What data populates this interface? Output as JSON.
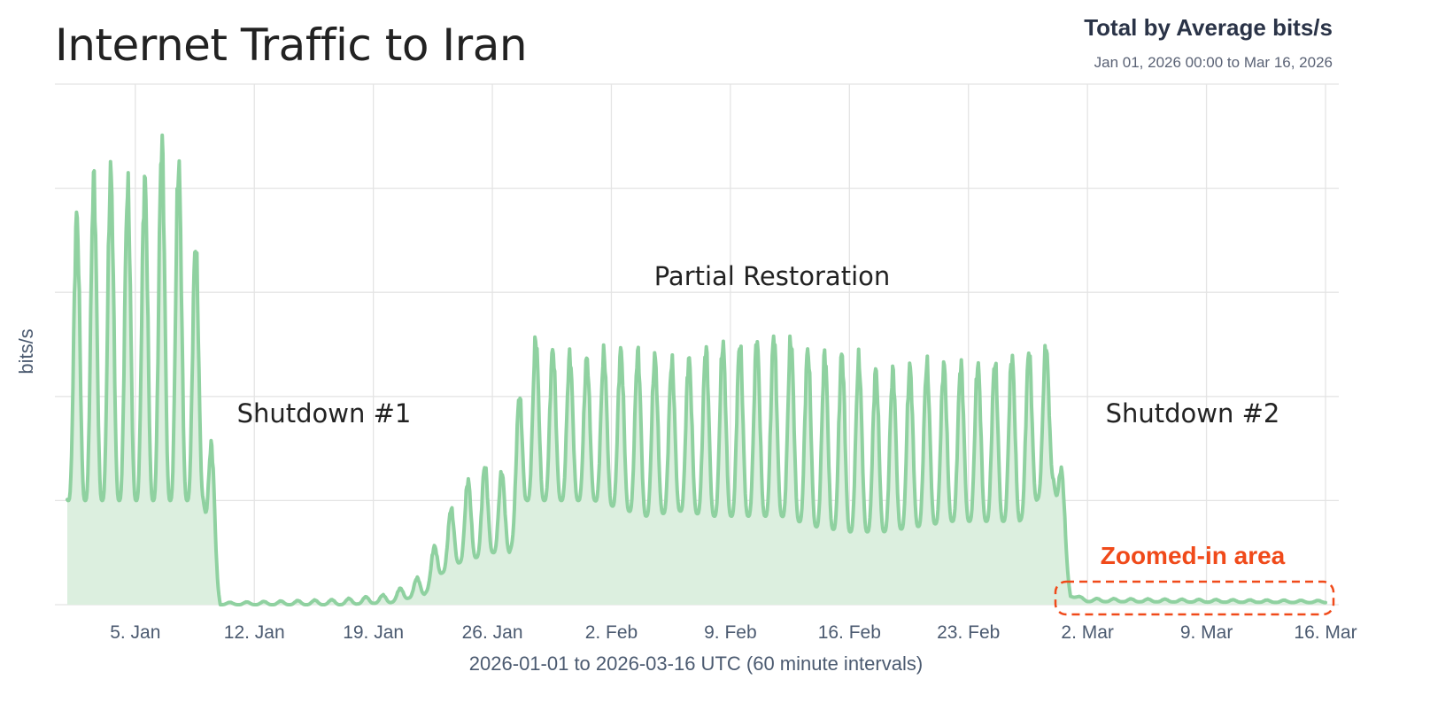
{
  "header": {
    "title": "Internet Traffic to Iran",
    "metric": "Total by Average bits/s",
    "date_range": "Jan 01, 2026 00:00 to Mar 16, 2026"
  },
  "colors": {
    "line": "#8fd1a0",
    "fill": "#dcefdf",
    "grid": "#e4e4e4",
    "zoom_highlight": "#f04a1a"
  },
  "chart_data": {
    "type": "area",
    "title": "Internet Traffic to Iran",
    "xlabel": "2026-01-01 to 2026-03-16 UTC (60 minute intervals)",
    "ylabel": "bits/s",
    "x_range": [
      "2026-01-01",
      "2026-03-16"
    ],
    "x_tick_labels": [
      "5. Jan",
      "12. Jan",
      "19. Jan",
      "26. Jan",
      "2. Feb",
      "9. Feb",
      "16. Feb",
      "23. Feb",
      "2. Mar",
      "9. Mar",
      "16. Mar"
    ],
    "y_tick_labels_shown": false,
    "ylim": [
      0,
      5
    ],
    "grid": true,
    "series": [
      {
        "name": "Total",
        "unit": "relative bits/s (unlabeled axis)",
        "daily_profile": [
          {
            "day": "2026-01-01",
            "min": 1.0,
            "max": 3.5
          },
          {
            "day": "2026-01-02",
            "min": 1.0,
            "max": 3.9
          },
          {
            "day": "2026-01-03",
            "min": 1.0,
            "max": 4.2
          },
          {
            "day": "2026-01-04",
            "min": 1.0,
            "max": 4.1
          },
          {
            "day": "2026-01-05",
            "min": 1.0,
            "max": 3.9
          },
          {
            "day": "2026-01-06",
            "min": 1.0,
            "max": 4.2
          },
          {
            "day": "2026-01-07",
            "min": 1.0,
            "max": 4.6
          },
          {
            "day": "2026-01-08",
            "min": 1.0,
            "max": 3.9
          },
          {
            "day": "2026-01-09",
            "min": 1.0,
            "max": 3.1
          },
          {
            "day": "2026-01-10",
            "min": 0.0,
            "max": 0.02
          },
          {
            "day": "2026-01-17",
            "min": 0.0,
            "max": 0.05
          },
          {
            "day": "2026-01-20",
            "min": 0.02,
            "max": 0.1
          },
          {
            "day": "2026-01-22",
            "min": 0.1,
            "max": 0.3
          },
          {
            "day": "2026-01-23",
            "min": 0.3,
            "max": 0.75
          },
          {
            "day": "2026-01-24",
            "min": 0.4,
            "max": 1.05
          },
          {
            "day": "2026-01-25",
            "min": 0.45,
            "max": 1.3
          },
          {
            "day": "2026-01-26",
            "min": 0.5,
            "max": 1.35
          },
          {
            "day": "2026-01-27",
            "min": 0.5,
            "max": 1.2
          },
          {
            "day": "2026-01-28",
            "min": 1.0,
            "max": 2.6
          },
          {
            "day": "2026-01-29",
            "min": 1.0,
            "max": 2.5
          },
          {
            "day": "2026-01-30",
            "min": 1.0,
            "max": 2.4
          },
          {
            "day": "2026-02-01",
            "min": 1.0,
            "max": 2.35
          },
          {
            "day": "2026-02-02",
            "min": 0.95,
            "max": 2.45
          },
          {
            "day": "2026-02-04",
            "min": 0.85,
            "max": 2.4
          },
          {
            "day": "2026-02-06",
            "min": 0.9,
            "max": 2.3
          },
          {
            "day": "2026-02-08",
            "min": 0.85,
            "max": 2.5
          },
          {
            "day": "2026-02-10",
            "min": 0.85,
            "max": 2.5
          },
          {
            "day": "2026-02-12",
            "min": 0.85,
            "max": 2.6
          },
          {
            "day": "2026-02-14",
            "min": 0.75,
            "max": 2.4
          },
          {
            "day": "2026-02-16",
            "min": 0.7,
            "max": 2.4
          },
          {
            "day": "2026-02-18",
            "min": 0.7,
            "max": 2.2
          },
          {
            "day": "2026-02-20",
            "min": 0.75,
            "max": 2.3
          },
          {
            "day": "2026-02-22",
            "min": 0.8,
            "max": 2.3
          },
          {
            "day": "2026-02-24",
            "min": 0.8,
            "max": 2.3
          },
          {
            "day": "2026-02-26",
            "min": 0.8,
            "max": 2.4
          },
          {
            "day": "2026-02-28",
            "min": 1.2,
            "max": 2.5
          },
          {
            "day": "2026-03-01",
            "min": 0.08,
            "max": 0.1
          },
          {
            "day": "2026-03-02",
            "min": 0.03,
            "max": 0.06
          },
          {
            "day": "2026-03-16",
            "min": 0.02,
            "max": 0.04
          }
        ]
      }
    ],
    "annotations": [
      "Shutdown #1",
      "Partial Restoration",
      "Shutdown #2",
      "Zoomed-in area"
    ]
  }
}
